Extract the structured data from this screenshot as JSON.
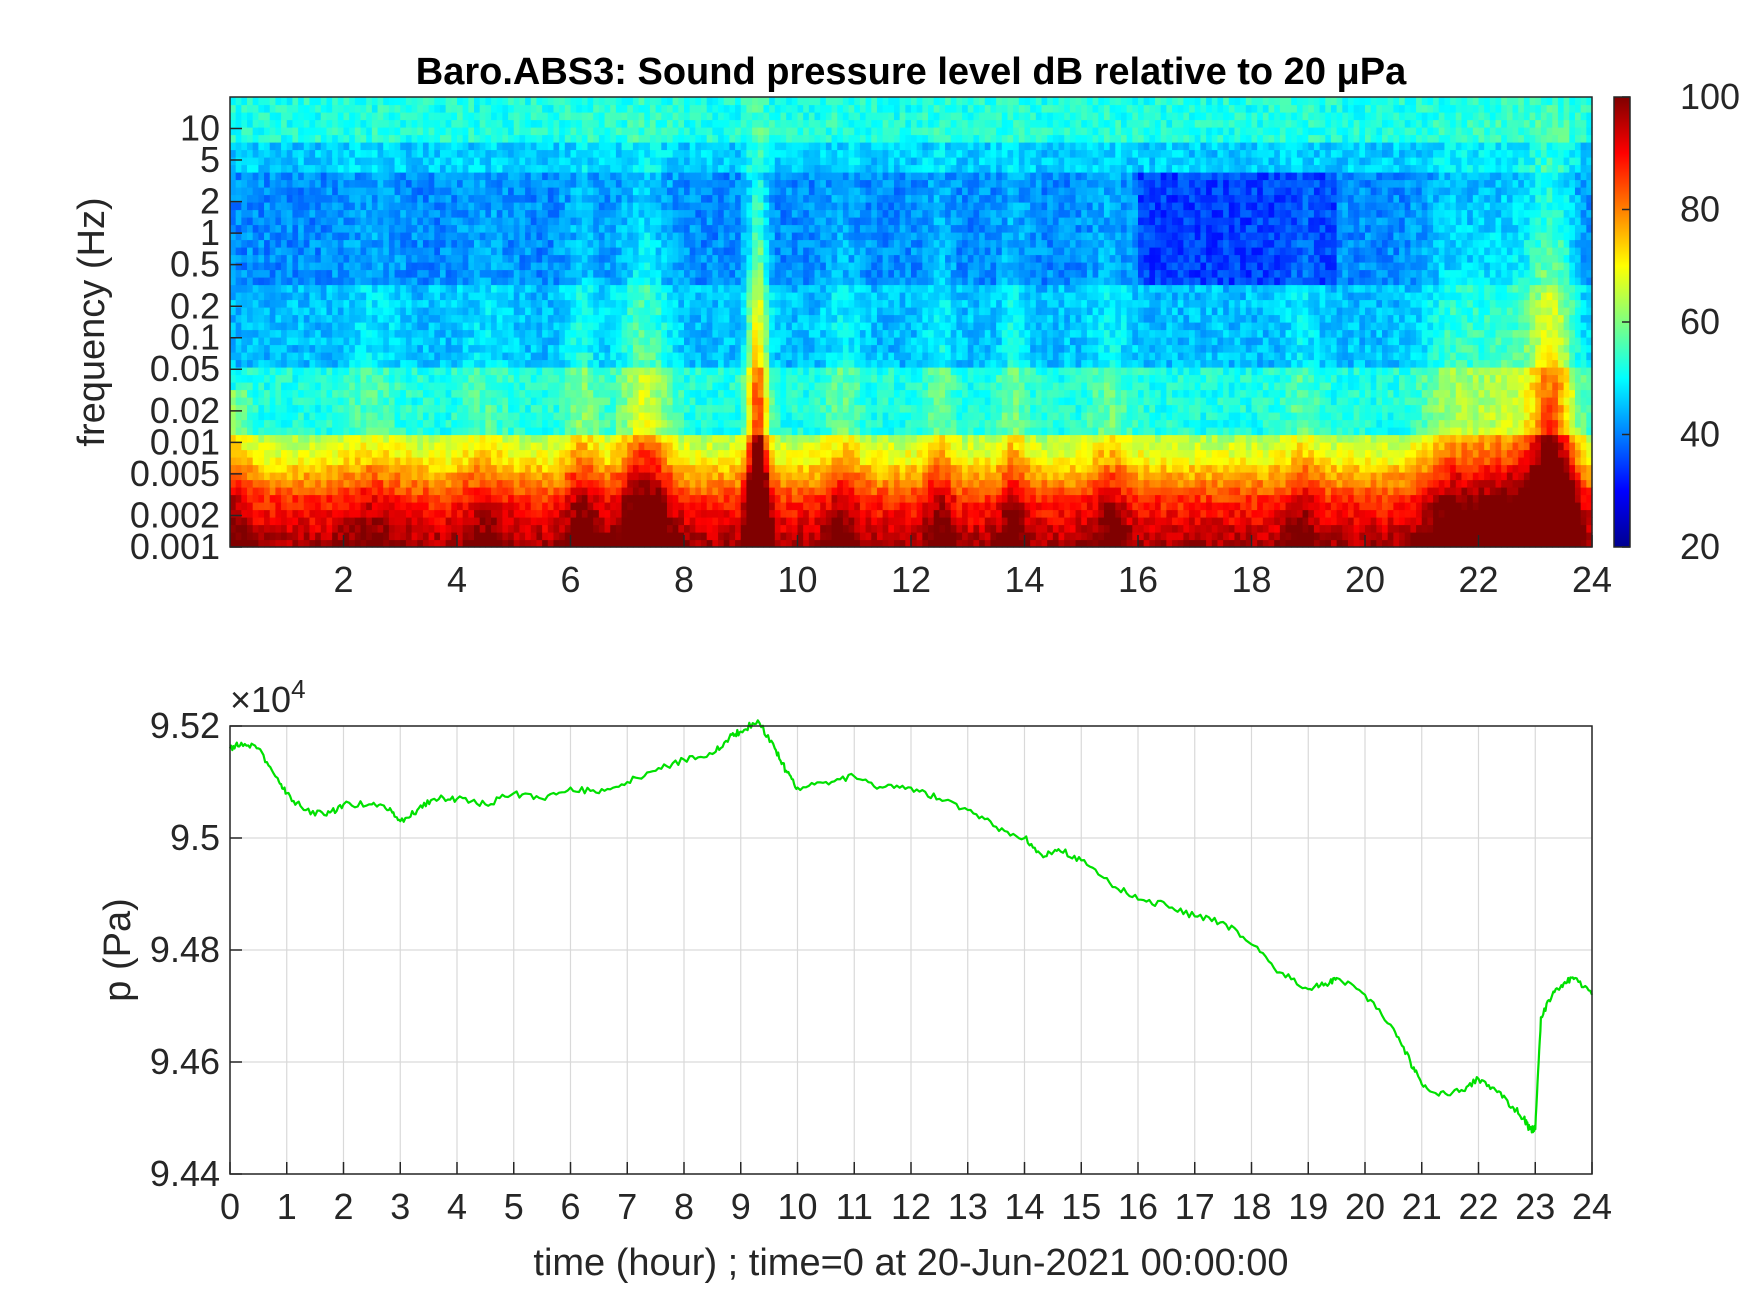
{
  "chart_data": [
    {
      "type": "heatmap",
      "title": "Baro.ABS3: Sound pressure level dB relative to 20 μPa",
      "xlabel": "",
      "ylabel": "frequency (Hz)",
      "xlim": [
        0,
        24
      ],
      "x_ticks": [
        "2",
        "4",
        "6",
        "8",
        "10",
        "12",
        "14",
        "16",
        "18",
        "20",
        "22",
        "24"
      ],
      "y_scale": "log",
      "ylim": [
        0.001,
        20
      ],
      "y_ticks": [
        "0.001",
        "0.002",
        "0.005",
        "0.01",
        "0.02",
        "0.05",
        "0.1",
        "0.2",
        "0.5",
        "1",
        "2",
        "5",
        "10"
      ],
      "colorbar": {
        "label": "",
        "range": [
          20,
          100
        ],
        "ticks": [
          "20",
          "40",
          "60",
          "80",
          "100"
        ],
        "colormap": "jet"
      },
      "features": [
        {
          "time_hour": 9.3,
          "note": "broadband high-level spike reaching above 10 Hz"
        },
        {
          "time_hour": 23.3,
          "note": "broadband high-level spike"
        },
        {
          "time_hour": 7.3,
          "note": "elevated levels up to ~1 Hz"
        }
      ]
    },
    {
      "type": "line",
      "title": "",
      "xlabel": "time (hour) ; time=0 at 20-Jun-2021 00:00:00",
      "ylabel": "p (Pa)",
      "exponent_label": "×10",
      "exponent_power": "4",
      "xlim": [
        0,
        24
      ],
      "ylim": [
        9.44,
        9.52
      ],
      "x_ticks": [
        "0",
        "1",
        "2",
        "3",
        "4",
        "5",
        "6",
        "7",
        "8",
        "9",
        "10",
        "11",
        "12",
        "13",
        "14",
        "15",
        "16",
        "17",
        "18",
        "19",
        "20",
        "21",
        "22",
        "23",
        "24"
      ],
      "y_ticks": [
        "9.44",
        "9.46",
        "9.48",
        "9.5",
        "9.52"
      ],
      "grid": true,
      "series": [
        {
          "color": "#00e000",
          "x": [
            0,
            0.2,
            0.5,
            0.8,
            1.0,
            1.3,
            1.7,
            2.0,
            2.5,
            2.8,
            3.0,
            3.3,
            3.6,
            4.0,
            4.5,
            5.0,
            5.5,
            6.0,
            6.5,
            7.0,
            7.5,
            8.0,
            8.5,
            8.8,
            9.0,
            9.3,
            9.6,
            9.8,
            10.0,
            10.5,
            11.0,
            11.5,
            12.0,
            12.5,
            13.0,
            13.5,
            14.0,
            14.3,
            14.6,
            15.0,
            15.5,
            16.0,
            16.5,
            17.0,
            17.5,
            18.0,
            18.5,
            19.0,
            19.3,
            19.5,
            20.0,
            20.5,
            20.8,
            21.0,
            21.3,
            21.7,
            22.0,
            22.3,
            22.6,
            22.8,
            22.9,
            23.0,
            23.1,
            23.3,
            23.5,
            23.7,
            24.0
          ],
          "y": [
            9.516,
            9.517,
            9.516,
            9.511,
            9.508,
            9.505,
            9.504,
            9.506,
            9.506,
            9.505,
            9.503,
            9.505,
            9.507,
            9.507,
            9.506,
            9.508,
            9.507,
            9.509,
            9.508,
            9.51,
            9.512,
            9.514,
            9.515,
            9.518,
            9.519,
            9.521,
            9.516,
            9.512,
            9.509,
            9.51,
            9.511,
            9.509,
            9.509,
            9.507,
            9.505,
            9.502,
            9.5,
            9.497,
            9.498,
            9.496,
            9.492,
            9.489,
            9.488,
            9.486,
            9.485,
            9.481,
            9.476,
            9.473,
            9.474,
            9.475,
            9.472,
            9.466,
            9.46,
            9.456,
            9.454,
            9.455,
            9.457,
            9.455,
            9.452,
            9.45,
            9.448,
            9.448,
            9.468,
            9.472,
            9.474,
            9.475,
            9.472
          ]
        }
      ]
    }
  ]
}
